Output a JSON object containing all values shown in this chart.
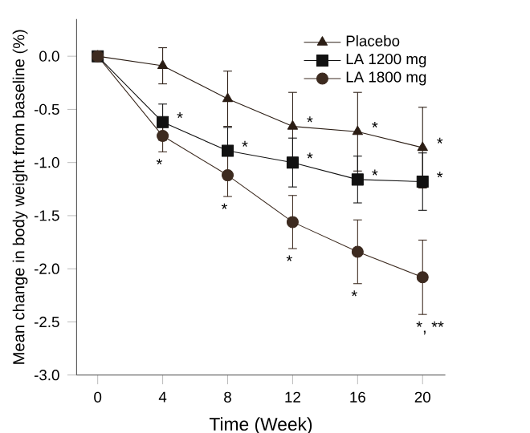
{
  "chart_data": {
    "type": "line",
    "xlabel": "Time (Week)",
    "ylabel": "Mean change in body weight from baseline (%)",
    "x": [
      0,
      4,
      8,
      12,
      16,
      20
    ],
    "series": [
      {
        "name": "Placebo",
        "color": "#2b1d14",
        "marker": "triangle",
        "values": [
          0,
          -0.09,
          -0.4,
          -0.66,
          -0.71,
          -0.86
        ],
        "errors": [
          null,
          0.17,
          0.26,
          0.32,
          0.37,
          0.38
        ]
      },
      {
        "name": "LA 1200 mg",
        "color": "#111111",
        "marker": "square",
        "values": [
          0,
          -0.62,
          -0.89,
          -1.0,
          -1.16,
          -1.18
        ],
        "errors": [
          null,
          0.17,
          0.22,
          0.23,
          0.22,
          0.27
        ]
      },
      {
        "name": "LA 1800 mg",
        "color": "#3d2b20",
        "marker": "circle",
        "values": [
          0,
          -0.75,
          -1.12,
          -1.56,
          -1.84,
          -2.08
        ],
        "errors": [
          null,
          0.15,
          0.2,
          0.25,
          0.3,
          0.35
        ]
      }
    ],
    "xlim": [
      -1.3,
      21.4
    ],
    "xticks": [
      0,
      4,
      8,
      12,
      16,
      20
    ],
    "ylim": [
      -3,
      0.35
    ],
    "yticks": [
      {
        "value": -3,
        "label": "-3.0"
      },
      -2.5,
      {
        "value": -2,
        "label": "-2.0"
      },
      -1.5,
      {
        "value": -1,
        "label": "-1.0"
      },
      -0.5,
      {
        "value": 0,
        "label": "0.0"
      }
    ],
    "legend": "top right",
    "grid": false,
    "annotations": [
      {
        "text": "*",
        "x": 12,
        "y": -0.66
      },
      {
        "text": "*",
        "x": 16,
        "y": -0.71
      },
      {
        "text": "*",
        "x": 20,
        "y": -0.86
      },
      {
        "text": "*",
        "x": 4,
        "y": -0.62
      },
      {
        "text": "*",
        "x": 8,
        "y": -0.89
      },
      {
        "text": "*",
        "x": 12,
        "y": -1.0
      },
      {
        "text": "*",
        "x": 16,
        "y": -1.16
      },
      {
        "text": "*",
        "x": 20,
        "y": -1.18
      },
      {
        "text": "*",
        "x": 4,
        "y": -0.75
      },
      {
        "text": "*",
        "x": 8,
        "y": -1.12
      },
      {
        "text": "*",
        "x": 12,
        "y": -1.56
      },
      {
        "text": "*",
        "x": 16,
        "y": -1.84
      },
      {
        "text": "*, **",
        "x": 20,
        "y": -2.08
      }
    ]
  }
}
